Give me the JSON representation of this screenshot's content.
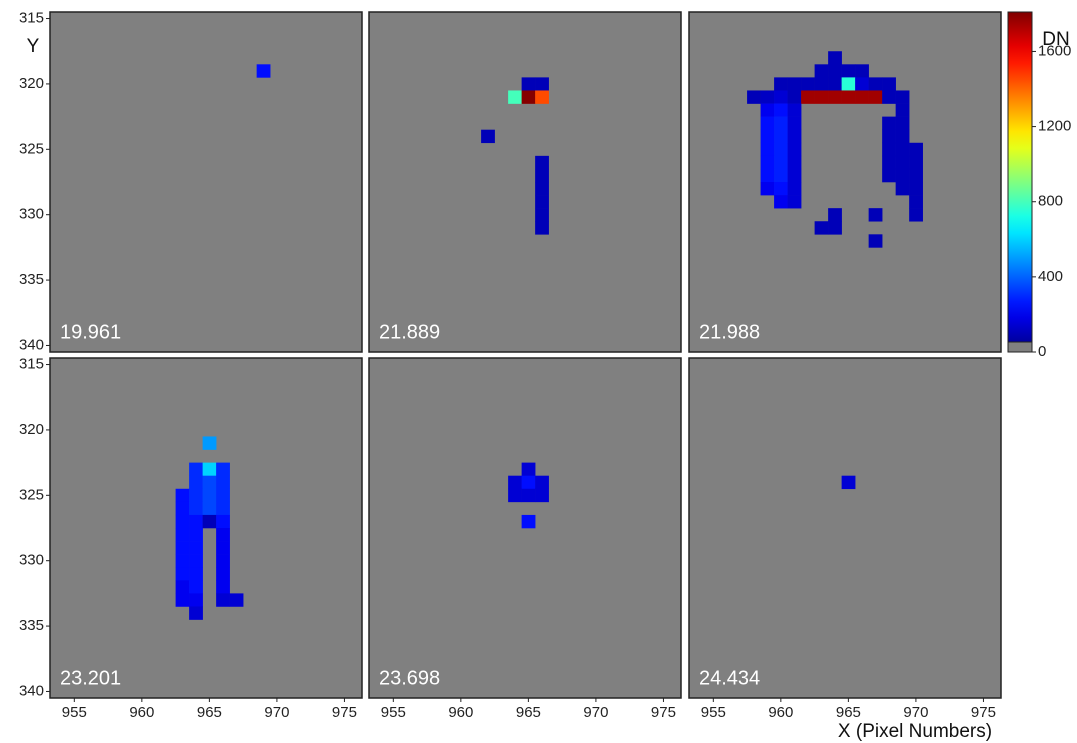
{
  "chart_data": {
    "type": "heatmap",
    "y_label": "Y",
    "x_label": "X (Pixel Numbers)",
    "xlim": [
      953.2,
      976.3
    ],
    "ylim": [
      314.5,
      340.5
    ],
    "xticks": [
      955,
      960,
      965,
      970,
      975
    ],
    "yticks": [
      315,
      320,
      325,
      330,
      335,
      340
    ],
    "colorbar_label": "DN",
    "clim": [
      0,
      1810
    ],
    "cticks": [
      0,
      400,
      800,
      1200,
      1600
    ],
    "colormap": "jet",
    "background": "#808080",
    "panels": [
      {
        "label": "19.961",
        "x": [
          969
        ],
        "y": [
          319
        ],
        "values": [
          250
        ]
      },
      {
        "label": "21.889",
        "x": [
          965,
          966,
          964,
          965,
          966,
          962,
          966,
          966,
          966,
          966,
          966,
          966
        ],
        "y": [
          320,
          320,
          321,
          321,
          321,
          324,
          326,
          327,
          328,
          329,
          330,
          331
        ],
        "values": [
          100,
          100,
          800,
          1800,
          1450,
          100,
          100,
          100,
          100,
          100,
          100,
          100
        ]
      },
      {
        "label": "21.988",
        "x": [
          964,
          963,
          964,
          965,
          966,
          960,
          961,
          962,
          963,
          964,
          965,
          966,
          967,
          968,
          958,
          959,
          960,
          961,
          962,
          963,
          964,
          965,
          966,
          967,
          968,
          969,
          959,
          960,
          961,
          969,
          959,
          960,
          961,
          968,
          969,
          959,
          960,
          961,
          968,
          969,
          959,
          960,
          961,
          968,
          969,
          970,
          959,
          960,
          961,
          968,
          969,
          970,
          959,
          960,
          961,
          968,
          969,
          970,
          959,
          960,
          961,
          969,
          970,
          960,
          961,
          970,
          964,
          967,
          970,
          963,
          964,
          967
        ],
        "y": [
          318,
          319,
          319,
          319,
          319,
          320,
          320,
          320,
          320,
          320,
          320,
          320,
          320,
          320,
          321,
          321,
          321,
          321,
          321,
          321,
          321,
          321,
          321,
          321,
          321,
          321,
          322,
          322,
          322,
          322,
          323,
          323,
          323,
          323,
          323,
          324,
          324,
          324,
          324,
          324,
          325,
          325,
          325,
          325,
          325,
          325,
          326,
          326,
          326,
          326,
          326,
          326,
          327,
          327,
          327,
          327,
          327,
          327,
          328,
          328,
          328,
          328,
          328,
          329,
          329,
          329,
          330,
          330,
          330,
          331,
          331,
          332
        ],
        "values": [
          100,
          100,
          100,
          100,
          100,
          100,
          100,
          100,
          100,
          100,
          750,
          150,
          100,
          100,
          100,
          120,
          150,
          100,
          1750,
          1750,
          1750,
          1750,
          1750,
          1750,
          100,
          100,
          200,
          250,
          150,
          100,
          250,
          280,
          150,
          100,
          100,
          250,
          280,
          150,
          100,
          100,
          250,
          280,
          150,
          100,
          100,
          100,
          250,
          280,
          150,
          100,
          100,
          100,
          250,
          280,
          150,
          100,
          100,
          100,
          200,
          250,
          150,
          100,
          100,
          200,
          150,
          100,
          100,
          100,
          100,
          100,
          100,
          100
        ]
      },
      {
        "label": "23.201",
        "x": [
          965,
          964,
          965,
          966,
          964,
          965,
          966,
          963,
          964,
          965,
          966,
          963,
          964,
          965,
          966,
          963,
          964,
          965,
          966,
          963,
          964,
          966,
          963,
          964,
          966,
          963,
          964,
          966,
          963,
          964,
          966,
          963,
          964,
          966,
          963,
          964,
          966,
          967,
          964
        ],
        "y": [
          321,
          323,
          323,
          323,
          324,
          324,
          324,
          325,
          325,
          325,
          325,
          326,
          326,
          326,
          326,
          327,
          327,
          327,
          327,
          328,
          328,
          328,
          329,
          329,
          329,
          330,
          330,
          330,
          331,
          331,
          331,
          332,
          332,
          332,
          333,
          333,
          333,
          333,
          334
        ],
        "values": [
          500,
          300,
          600,
          300,
          300,
          350,
          300,
          250,
          300,
          350,
          300,
          250,
          300,
          350,
          300,
          250,
          250,
          100,
          250,
          250,
          250,
          200,
          250,
          250,
          200,
          250,
          250,
          200,
          250,
          250,
          200,
          200,
          250,
          200,
          200,
          200,
          150,
          150,
          150
        ]
      },
      {
        "label": "23.698",
        "x": [
          965,
          964,
          965,
          966,
          964,
          965,
          966,
          965
        ],
        "y": [
          323,
          324,
          324,
          324,
          325,
          325,
          325,
          327
        ],
        "values": [
          150,
          150,
          250,
          150,
          150,
          150,
          150,
          250
        ]
      },
      {
        "label": "24.434",
        "x": [
          965
        ],
        "y": [
          324
        ],
        "values": [
          150
        ]
      }
    ]
  }
}
